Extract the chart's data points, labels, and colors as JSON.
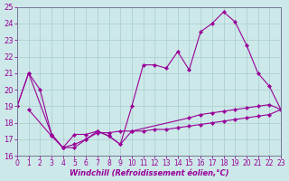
{
  "xlabel": "Windchill (Refroidissement éolien,°C)",
  "xlim": [
    0,
    23
  ],
  "ylim": [
    16,
    25
  ],
  "yticks": [
    16,
    17,
    18,
    19,
    20,
    21,
    22,
    23,
    24,
    25
  ],
  "xticks": [
    0,
    1,
    2,
    3,
    4,
    5,
    6,
    7,
    8,
    9,
    10,
    11,
    12,
    13,
    14,
    15,
    16,
    17,
    18,
    19,
    20,
    21,
    22,
    23
  ],
  "line_color": "#990099",
  "bg_color": "#cce8e8",
  "grid_color": "#aacccc",
  "line1_x": [
    0,
    1,
    2,
    3,
    4,
    5,
    6,
    7,
    8,
    9,
    10,
    11,
    12,
    13,
    14,
    15,
    16,
    17,
    18,
    19,
    20,
    21,
    22,
    23
  ],
  "line1_y": [
    19,
    21,
    20.0,
    17.3,
    16.5,
    16.5,
    17.0,
    17.4,
    17.4,
    17.5,
    17.5,
    17.5,
    17.6,
    17.6,
    17.7,
    17.8,
    17.9,
    18.0,
    18.1,
    18.2,
    18.3,
    18.4,
    18.5,
    18.8
  ],
  "line2_x": [
    0,
    1,
    3,
    4,
    5,
    6,
    7,
    8,
    9,
    10,
    11,
    12,
    13,
    14,
    15,
    16,
    17,
    18,
    19,
    20,
    21,
    22,
    23
  ],
  "line2_y": [
    19,
    21,
    17.3,
    16.5,
    16.7,
    17.0,
    17.5,
    17.2,
    16.7,
    19.0,
    21.5,
    21.5,
    21.3,
    22.3,
    21.2,
    23.5,
    24.0,
    24.7,
    24.1,
    22.7,
    21.0,
    20.2,
    18.8
  ],
  "line3_x": [
    1,
    3,
    4,
    5,
    6,
    7,
    8,
    9,
    10,
    15,
    16,
    17,
    18,
    19,
    20,
    21,
    22,
    23
  ],
  "line3_y": [
    18.8,
    17.2,
    16.5,
    17.3,
    17.3,
    17.5,
    17.2,
    16.7,
    17.5,
    18.3,
    18.5,
    18.6,
    18.7,
    18.8,
    18.9,
    19.0,
    19.1,
    18.8
  ]
}
